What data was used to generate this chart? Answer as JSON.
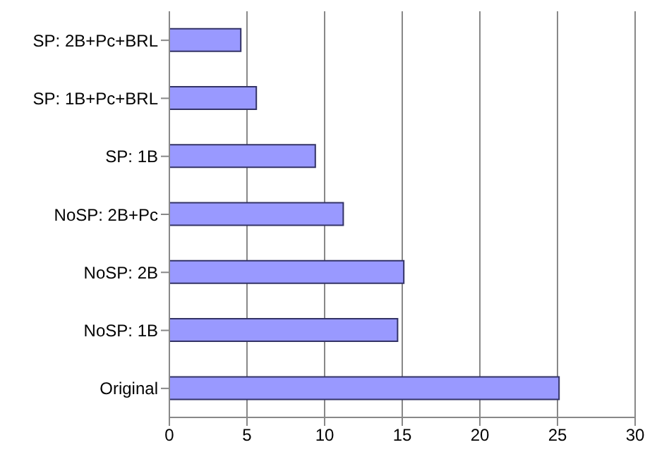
{
  "chart_data": {
    "type": "bar",
    "orientation": "horizontal",
    "categories": [
      "SP: 2B+Pc+BRL",
      "SP: 1B+Pc+BRL",
      "SP: 1B",
      "NoSP: 2B+Pc",
      "NoSP: 2B",
      "NoSP: 1B",
      "Original"
    ],
    "values": [
      4.6,
      5.6,
      9.4,
      11.2,
      15.1,
      14.7,
      25.1
    ],
    "color": "#9999ff",
    "xlim": [
      0,
      30
    ],
    "xticks": [
      0,
      5,
      10,
      15,
      20,
      25,
      30
    ],
    "grid": "x"
  }
}
